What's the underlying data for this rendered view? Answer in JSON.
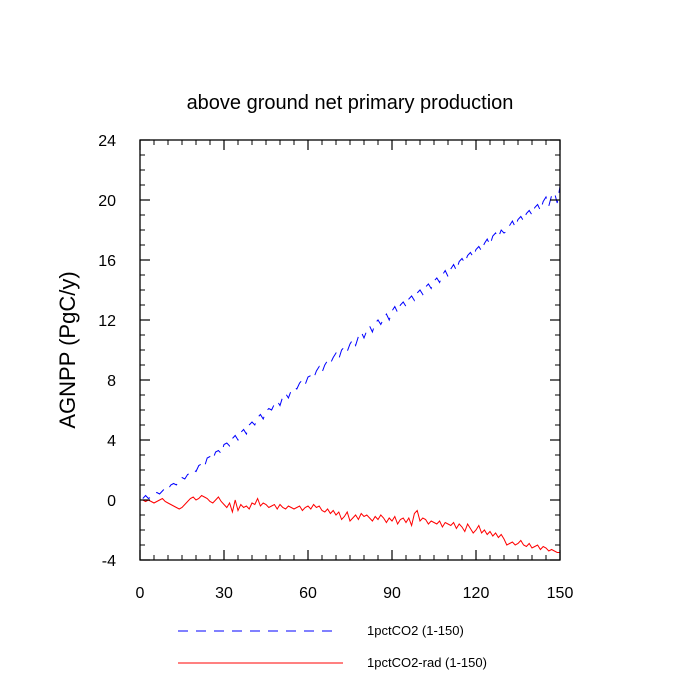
{
  "chart_data": {
    "type": "line",
    "title": "above ground net primary production",
    "xlabel": "",
    "ylabel": "AGNPP  (PgC/y)",
    "xlim": [
      0,
      150
    ],
    "ylim": [
      -4,
      24
    ],
    "xticks": [
      0,
      30,
      60,
      90,
      120,
      150
    ],
    "yticks": [
      -4,
      0,
      4,
      8,
      12,
      16,
      20,
      24
    ],
    "x_minor_step": 5,
    "y_minor_step": 1,
    "grid": false,
    "legend_position": "bottom",
    "x": [
      1,
      2,
      3,
      4,
      5,
      6,
      7,
      8,
      9,
      10,
      11,
      12,
      13,
      14,
      15,
      16,
      17,
      18,
      19,
      20,
      21,
      22,
      23,
      24,
      25,
      26,
      27,
      28,
      29,
      30,
      31,
      32,
      33,
      34,
      35,
      36,
      37,
      38,
      39,
      40,
      41,
      42,
      43,
      44,
      45,
      46,
      47,
      48,
      49,
      50,
      51,
      52,
      53,
      54,
      55,
      56,
      57,
      58,
      59,
      60,
      61,
      62,
      63,
      64,
      65,
      66,
      67,
      68,
      69,
      70,
      71,
      72,
      73,
      74,
      75,
      76,
      77,
      78,
      79,
      80,
      81,
      82,
      83,
      84,
      85,
      86,
      87,
      88,
      89,
      90,
      91,
      92,
      93,
      94,
      95,
      96,
      97,
      98,
      99,
      100,
      101,
      102,
      103,
      104,
      105,
      106,
      107,
      108,
      109,
      110,
      111,
      112,
      113,
      114,
      115,
      116,
      117,
      118,
      119,
      120,
      121,
      122,
      123,
      124,
      125,
      126,
      127,
      128,
      129,
      130,
      131,
      132,
      133,
      134,
      135,
      136,
      137,
      138,
      139,
      140,
      141,
      142,
      143,
      144,
      145,
      146,
      147,
      148,
      149,
      150
    ],
    "series": [
      {
        "name": "1pctCO2 (1-150)",
        "color": "#0000ff",
        "dash": "dashed",
        "values": [
          0.1,
          0.3,
          0.1,
          0.2,
          0.4,
          0.5,
          0.4,
          0.6,
          0.8,
          0.7,
          1.0,
          1.1,
          1.0,
          1.3,
          1.5,
          1.4,
          1.7,
          1.8,
          2.0,
          1.9,
          2.3,
          2.4,
          2.2,
          2.8,
          2.9,
          2.7,
          3.2,
          3.3,
          3.1,
          3.7,
          3.8,
          3.6,
          4.1,
          4.3,
          4.0,
          4.5,
          4.7,
          4.4,
          5.0,
          5.2,
          5.0,
          5.5,
          5.7,
          5.4,
          5.9,
          6.1,
          6.0,
          6.4,
          6.6,
          6.3,
          6.9,
          7.1,
          6.8,
          7.3,
          7.5,
          7.4,
          7.8,
          8.0,
          7.7,
          8.2,
          8.3,
          8.1,
          8.6,
          8.9,
          8.5,
          9.0,
          9.3,
          9.1,
          9.5,
          9.8,
          9.4,
          10.0,
          10.2,
          9.9,
          10.4,
          10.7,
          10.3,
          10.9,
          11.2,
          10.8,
          11.3,
          11.6,
          11.2,
          11.8,
          12.0,
          11.7,
          12.1,
          12.4,
          12.0,
          12.6,
          12.9,
          12.5,
          13.0,
          13.2,
          12.9,
          13.4,
          13.6,
          13.3,
          13.8,
          14.0,
          13.7,
          14.2,
          14.4,
          14.1,
          14.6,
          14.8,
          14.5,
          15.0,
          15.3,
          14.9,
          15.4,
          15.7,
          15.3,
          15.9,
          16.1,
          15.8,
          16.3,
          16.5,
          16.2,
          16.7,
          16.9,
          16.6,
          17.1,
          17.4,
          17.0,
          17.6,
          17.8,
          17.5,
          18.0,
          17.8,
          17.9,
          18.3,
          18.6,
          18.2,
          18.7,
          18.9,
          18.6,
          19.1,
          19.3,
          19.0,
          19.5,
          19.7,
          19.3,
          19.9,
          20.2,
          19.6,
          20.3,
          20.5,
          19.8,
          20.9
        ]
      },
      {
        "name": "1pctCO2-rad (1-150)",
        "color": "#ff0000",
        "dash": "solid",
        "values": [
          0.0,
          -0.1,
          0.0,
          -0.1,
          -0.2,
          -0.1,
          0.0,
          0.1,
          -0.1,
          -0.2,
          -0.3,
          -0.4,
          -0.5,
          -0.6,
          -0.5,
          -0.3,
          -0.1,
          0.1,
          0.2,
          0.0,
          0.1,
          0.3,
          0.2,
          0.1,
          -0.1,
          -0.2,
          0.0,
          0.2,
          -0.1,
          -0.3,
          -0.5,
          -0.2,
          -0.8,
          0.0,
          -0.7,
          -0.3,
          -0.5,
          -0.4,
          -0.6,
          -0.2,
          -0.3,
          0.1,
          -0.4,
          -0.2,
          -0.3,
          -0.5,
          -0.4,
          -0.3,
          -0.6,
          -0.3,
          -0.5,
          -0.6,
          -0.4,
          -0.5,
          -0.6,
          -0.5,
          -0.4,
          -0.7,
          -0.5,
          -0.4,
          -0.6,
          -0.3,
          -0.5,
          -0.4,
          -0.7,
          -0.8,
          -0.6,
          -0.9,
          -0.7,
          -1.0,
          -0.8,
          -1.3,
          -1.1,
          -0.8,
          -1.4,
          -1.2,
          -1.0,
          -1.3,
          -0.9,
          -1.1,
          -1.0,
          -1.2,
          -1.4,
          -1.1,
          -1.3,
          -1.0,
          -1.2,
          -1.5,
          -1.2,
          -1.4,
          -1.1,
          -1.6,
          -1.3,
          -1.2,
          -1.5,
          -1.2,
          -1.7,
          -0.9,
          -0.7,
          -1.4,
          -1.2,
          -1.3,
          -1.6,
          -1.4,
          -1.5,
          -1.6,
          -1.4,
          -1.8,
          -1.5,
          -1.6,
          -1.7,
          -1.5,
          -1.9,
          -1.6,
          -1.8,
          -2.1,
          -1.6,
          -1.9,
          -2.2,
          -2.0,
          -1.7,
          -2.2,
          -2.0,
          -2.3,
          -2.1,
          -2.4,
          -2.2,
          -2.5,
          -2.3,
          -2.6,
          -3.0,
          -2.9,
          -2.8,
          -3.0,
          -2.9,
          -2.7,
          -3.0,
          -3.1,
          -2.9,
          -3.2,
          -3.1,
          -3.0,
          -3.3,
          -3.1,
          -3.2,
          -3.4,
          -3.3,
          -3.4,
          -3.5,
          -3.5
        ]
      }
    ]
  }
}
